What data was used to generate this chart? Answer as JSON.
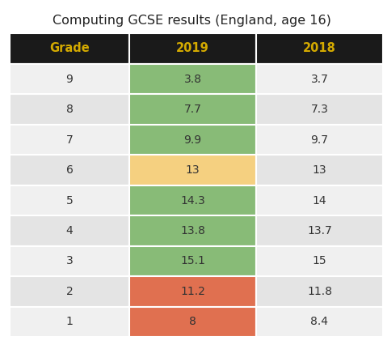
{
  "title": "Computing GCSE results (England, age 16)",
  "header": [
    "Grade",
    "2019",
    "2018"
  ],
  "grades": [
    9,
    8,
    7,
    6,
    5,
    4,
    3,
    2,
    1
  ],
  "values_2019": [
    "3.8",
    "7.7",
    "9.9",
    "13",
    "14.3",
    "13.8",
    "15.1",
    "11.2",
    "8"
  ],
  "values_2018": [
    "3.7",
    "7.3",
    "9.7",
    "13",
    "14",
    "13.7",
    "15",
    "11.8",
    "8.4"
  ],
  "cell_colors_2019": [
    "#88bb77",
    "#88bb77",
    "#88bb77",
    "#f5d080",
    "#88bb77",
    "#88bb77",
    "#88bb77",
    "#e07050",
    "#e07050"
  ],
  "header_bg": "#1a1a1a",
  "header_text_color": "#d4aa00",
  "row_bg_odd": "#f0f0f0",
  "row_bg_even": "#e4e4e4",
  "title_fontsize": 11.5,
  "header_fontsize": 10.5,
  "data_fontsize": 10
}
